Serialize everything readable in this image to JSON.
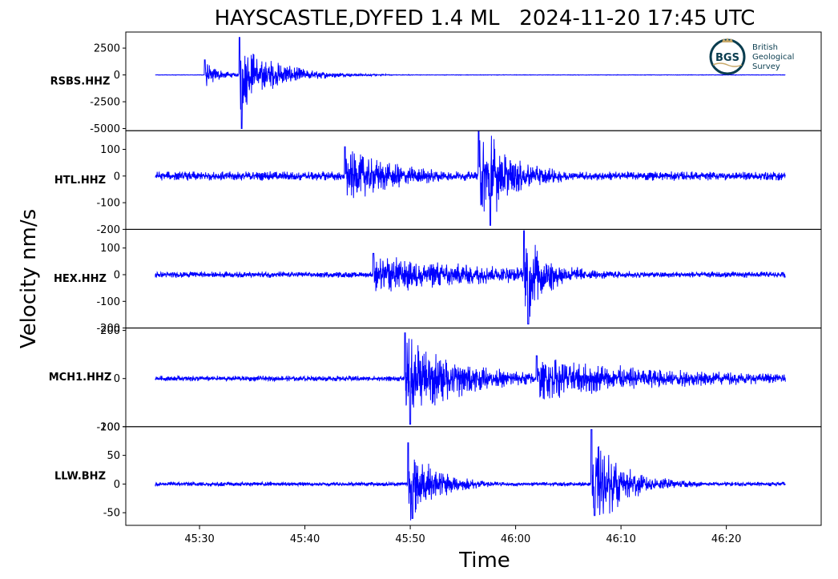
{
  "chart_data": {
    "type": "line",
    "title": "HAYSCASTLE,DYFED 1.4 ML   2024-11-20 17:45 UTC",
    "xlabel": "Time",
    "ylabel": "Velocity nm/s",
    "x_ticks": [
      "45:30",
      "45:40",
      "45:50",
      "46:00",
      "46:10",
      "46:20"
    ],
    "x_tick_seconds": [
      30,
      40,
      50,
      60,
      70,
      80
    ],
    "x_range_seconds": [
      23,
      89
    ],
    "trace_start_seconds": 25.8,
    "trace_end_seconds": 85.6,
    "line_color": "#0000ff",
    "panels": [
      {
        "station": "RSBS.HHZ",
        "ylim": [
          -5200,
          4000
        ],
        "yticks": [
          2500,
          0,
          -2500,
          -5000
        ],
        "ytick_labels": [
          "2500",
          "0",
          "-2500",
          "-5000"
        ],
        "noise_amplitude": 25,
        "events": [
          {
            "t": 30.5,
            "amplitude": 1400,
            "decay_seconds": 1.5
          },
          {
            "t": 33.8,
            "amplitude": 3500,
            "decay_seconds": 3.5
          },
          {
            "t": 34.0,
            "amplitude": -5000,
            "decay_seconds": 0.3
          }
        ]
      },
      {
        "station": "HTL.HHZ",
        "ylim": [
          -200,
          170
        ],
        "yticks": [
          100,
          0,
          -100,
          -200
        ],
        "ytick_labels": [
          "100",
          "0",
          "-100",
          "-200"
        ],
        "noise_amplitude": 18,
        "events": [
          {
            "t": 43.8,
            "amplitude": 110,
            "decay_seconds": 6
          },
          {
            "t": 56.5,
            "amplitude": 170,
            "decay_seconds": 4
          },
          {
            "t": 57.6,
            "amplitude": -185,
            "decay_seconds": 2
          }
        ]
      },
      {
        "station": "HEX.HHZ",
        "ylim": [
          -200,
          170
        ],
        "yticks": [
          100,
          0,
          -100,
          -200
        ],
        "ytick_labels": [
          "100",
          "0",
          "-100",
          "-200"
        ],
        "noise_amplitude": 12,
        "events": [
          {
            "t": 46.5,
            "amplitude": 80,
            "decay_seconds": 14
          },
          {
            "t": 60.8,
            "amplitude": 165,
            "decay_seconds": 3
          },
          {
            "t": 61.2,
            "amplitude": -185,
            "decay_seconds": 2
          }
        ]
      },
      {
        "station": "MCH1.HHZ",
        "ylim": [
          -200,
          210
        ],
        "yticks": [
          200,
          0,
          -200
        ],
        "ytick_labels": [
          "200",
          "0",
          "-200"
        ],
        "noise_amplitude": 12,
        "events": [
          {
            "t": 49.5,
            "amplitude": 190,
            "decay_seconds": 6
          },
          {
            "t": 50.0,
            "amplitude": -190,
            "decay_seconds": 2
          },
          {
            "t": 62.0,
            "amplitude": 95,
            "decay_seconds": 15
          }
        ]
      },
      {
        "station": "LLW.BHZ",
        "ylim": [
          -72,
          100
        ],
        "yticks": [
          100,
          50,
          0,
          -50
        ],
        "ytick_labels": [
          "100",
          "50",
          "0",
          "-50"
        ],
        "noise_amplitude": 4,
        "events": [
          {
            "t": 49.8,
            "amplitude": 72,
            "decay_seconds": 3
          },
          {
            "t": 50.2,
            "amplitude": -60,
            "decay_seconds": 3
          },
          {
            "t": 67.2,
            "amplitude": 95,
            "decay_seconds": 3
          },
          {
            "t": 67.5,
            "amplitude": -55,
            "decay_seconds": 4
          }
        ]
      }
    ],
    "grid": false,
    "legend": "none"
  },
  "logo": {
    "initials": "BGS",
    "line1": "British",
    "line2": "Geological",
    "line3": "Survey",
    "ring_color": "#0a3d4f",
    "accent_color": "#c8a96a",
    "text_color": "#0a3d4f"
  }
}
